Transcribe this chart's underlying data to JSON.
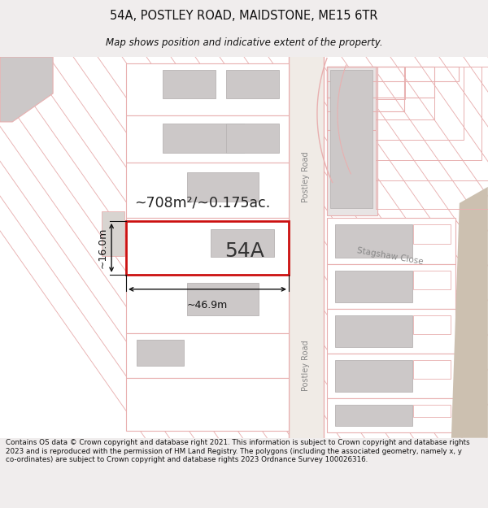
{
  "title_line1": "54A, POSTLEY ROAD, MAIDSTONE, ME15 6TR",
  "title_line2": "Map shows position and indicative extent of the property.",
  "footnote": "Contains OS data © Crown copyright and database right 2021. This information is subject to Crown copyright and database rights 2023 and is reproduced with the permission of HM Land Registry. The polygons (including the associated geometry, namely x, y co-ordinates) are subject to Crown copyright and database rights 2023 Ordnance Survey 100026316.",
  "property_label": "54A",
  "area_label": "~708m²/~0.175ac.",
  "width_label": "~46.9m",
  "height_label": "~16.0m",
  "road_label_top": "Postley Road",
  "road_label_bottom": "Postley Road",
  "street_label": "Stagshaw Close",
  "fig_bg": "#f0eded",
  "map_bg": "#ffffff",
  "plot_red": "#e05050",
  "line_pink": "#e8b0b0",
  "building_fill": "#ccc8c8",
  "building_edge": "#b8b4b4",
  "road_fill": "#f0ebe6",
  "taupe_fill": "#ccc0b0",
  "dim_color": "#111111",
  "label_gray": "#888888",
  "title_color": "#111111",
  "footnote_color": "#111111",
  "prop_outline": "#cc1111"
}
